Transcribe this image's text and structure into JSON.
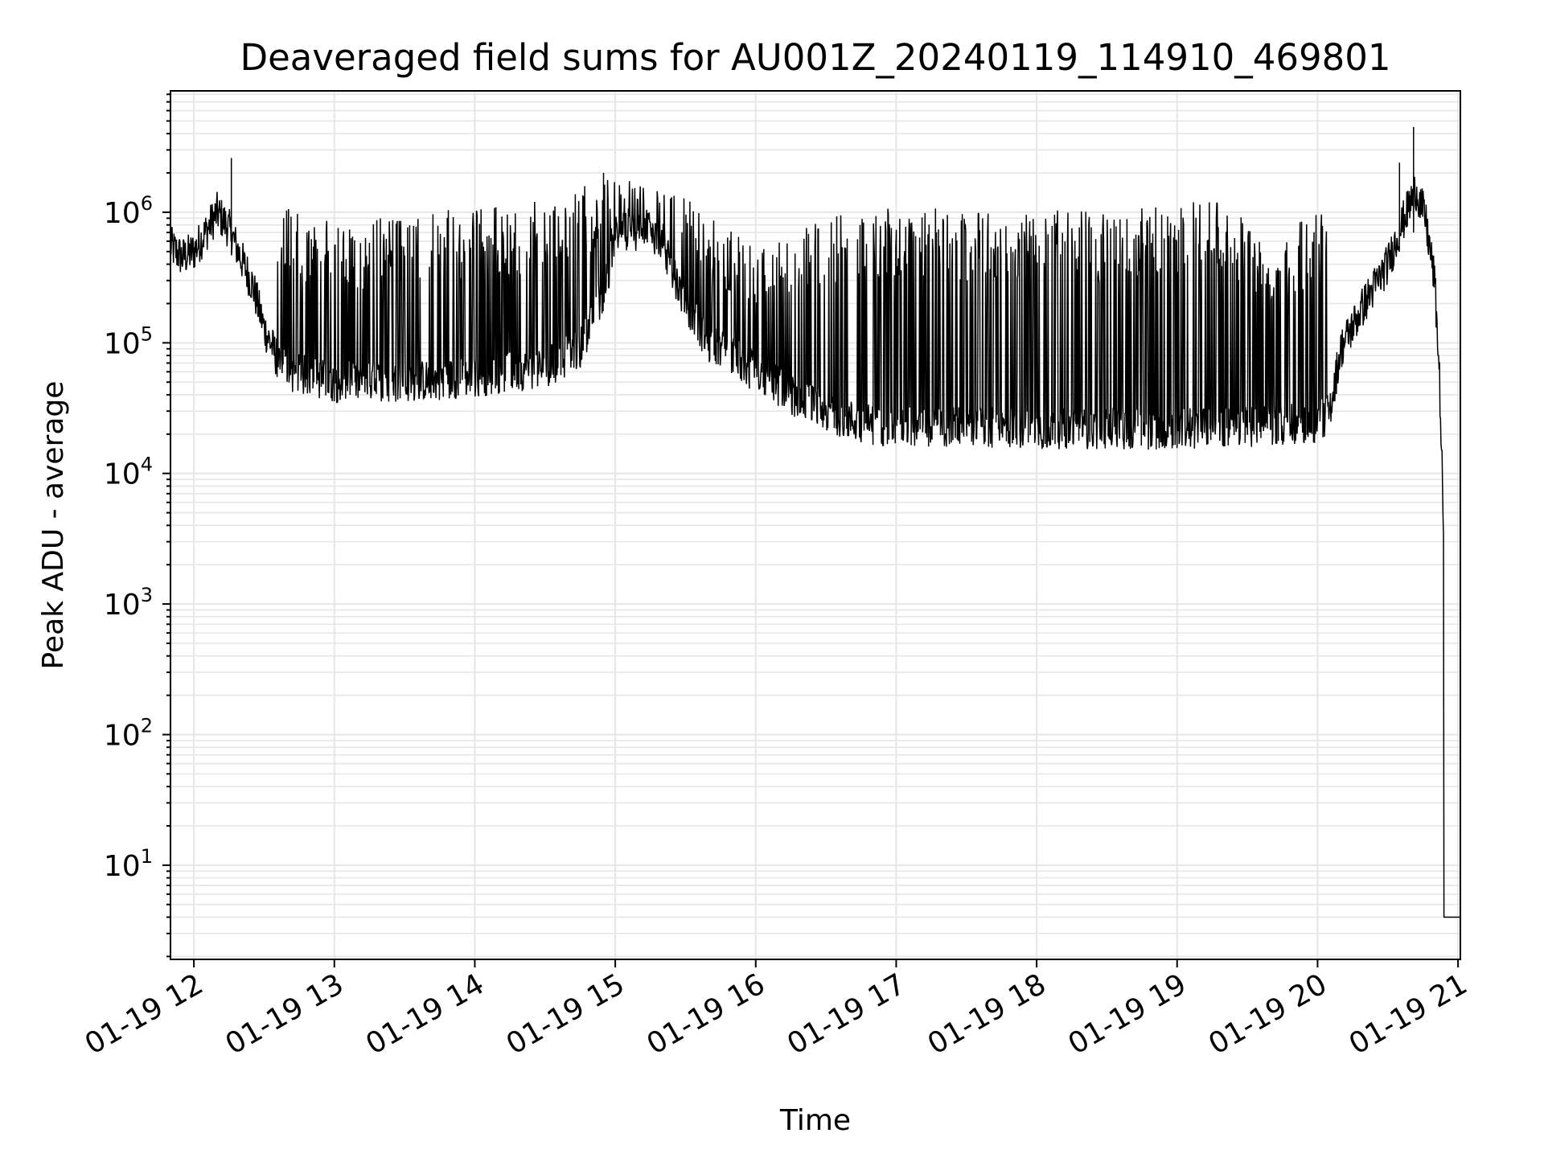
{
  "chart_data": {
    "type": "line",
    "title": "Deaveraged field sums for AU001Z_20240119_114910_469801",
    "xlabel": "Time",
    "ylabel": "Peak ADU - average",
    "x_scale": "time",
    "y_scale": "log",
    "xlim": [
      "2024-01-19 11:50",
      "2024-01-19 21:01"
    ],
    "ylim": [
      1.9,
      8500000
    ],
    "x_ticks": [
      "01-19 12",
      "01-19 13",
      "01-19 14",
      "01-19 15",
      "01-19 16",
      "01-19 17",
      "01-19 18",
      "01-19 19",
      "01-19 20",
      "01-19 21"
    ],
    "y_ticks": [
      {
        "base": "10",
        "exp": "1"
      },
      {
        "base": "10",
        "exp": "2"
      },
      {
        "base": "10",
        "exp": "3"
      },
      {
        "base": "10",
        "exp": "4"
      },
      {
        "base": "10",
        "exp": "5"
      },
      {
        "base": "10",
        "exp": "6"
      }
    ],
    "grid": true,
    "series": [
      {
        "color": "#000000",
        "baseline": [
          [
            "2024-01-19 11:50",
            550000
          ],
          [
            "2024-01-19 11:55",
            450000
          ],
          [
            "2024-01-19 12:00",
            500000
          ],
          [
            "2024-01-19 12:05",
            700000
          ],
          [
            "2024-01-19 12:10",
            1000000
          ],
          [
            "2024-01-19 12:15",
            750000
          ],
          [
            "2024-01-19 12:20",
            450000
          ],
          [
            "2024-01-19 12:25",
            280000
          ],
          [
            "2024-01-19 12:30",
            130000
          ],
          [
            "2024-01-19 12:35",
            80000
          ],
          [
            "2024-01-19 12:40",
            60000
          ],
          [
            "2024-01-19 12:50",
            55000
          ],
          [
            "2024-01-19 13:00",
            50000
          ],
          [
            "2024-01-19 13:30",
            50000
          ],
          [
            "2024-01-19 14:00",
            55000
          ],
          [
            "2024-01-19 14:30",
            65000
          ],
          [
            "2024-01-19 14:45",
            90000
          ],
          [
            "2024-01-19 14:55",
            250000
          ],
          [
            "2024-01-19 15:00",
            600000
          ],
          [
            "2024-01-19 15:10",
            900000
          ],
          [
            "2024-01-19 15:20",
            600000
          ],
          [
            "2024-01-19 15:30",
            200000
          ],
          [
            "2024-01-19 15:40",
            100000
          ],
          [
            "2024-01-19 16:00",
            60000
          ],
          [
            "2024-01-19 16:15",
            40000
          ],
          [
            "2024-01-19 16:30",
            30000
          ],
          [
            "2024-01-19 16:45",
            24000
          ],
          [
            "2024-01-19 17:00",
            23000
          ],
          [
            "2024-01-19 18:00",
            22000
          ],
          [
            "2024-01-19 19:00",
            22000
          ],
          [
            "2024-01-19 20:00",
            24000
          ],
          [
            "2024-01-19 20:05",
            30000
          ],
          [
            "2024-01-19 20:10",
            90000
          ],
          [
            "2024-01-19 20:20",
            200000
          ],
          [
            "2024-01-19 20:30",
            400000
          ],
          [
            "2024-01-19 20:37",
            900000
          ],
          [
            "2024-01-19 20:42",
            1500000
          ],
          [
            "2024-01-19 20:46",
            900000
          ],
          [
            "2024-01-19 20:50",
            300000
          ],
          [
            "2024-01-19 20:52",
            60000
          ],
          [
            "2024-01-19 20:54",
            3000
          ],
          [
            "2024-01-19 20:55",
            4
          ],
          [
            "2024-01-19 21:01",
            4
          ]
        ],
        "spike_peaks": [
          [
            "2024-01-19 12:16",
            2600000
          ],
          [
            "2024-01-19 12:50",
            800000
          ],
          [
            "2024-01-19 13:00",
            900000
          ],
          [
            "2024-01-19 13:20",
            900000
          ],
          [
            "2024-01-19 13:40",
            1000000
          ],
          [
            "2024-01-19 14:00",
            1100000
          ],
          [
            "2024-01-19 14:20",
            1200000
          ],
          [
            "2024-01-19 14:40",
            1300000
          ],
          [
            "2024-01-19 14:55",
            2000000
          ],
          [
            "2024-01-19 15:05",
            1800000
          ],
          [
            "2024-01-19 15:20",
            1600000
          ],
          [
            "2024-01-19 15:40",
            1000000
          ],
          [
            "2024-01-19 16:00",
            700000
          ],
          [
            "2024-01-19 16:30",
            1000000
          ],
          [
            "2024-01-19 17:00",
            1100000
          ],
          [
            "2024-01-19 17:30",
            1050000
          ],
          [
            "2024-01-19 18:00",
            1050000
          ],
          [
            "2024-01-19 18:30",
            1000000
          ],
          [
            "2024-01-19 19:00",
            1200000
          ],
          [
            "2024-01-19 19:20",
            1300000
          ],
          [
            "2024-01-19 19:40",
            700000
          ],
          [
            "2024-01-19 20:00",
            1000000
          ],
          [
            "2024-01-19 20:35",
            2500000
          ],
          [
            "2024-01-19 20:41",
            4500000
          ]
        ]
      }
    ]
  }
}
